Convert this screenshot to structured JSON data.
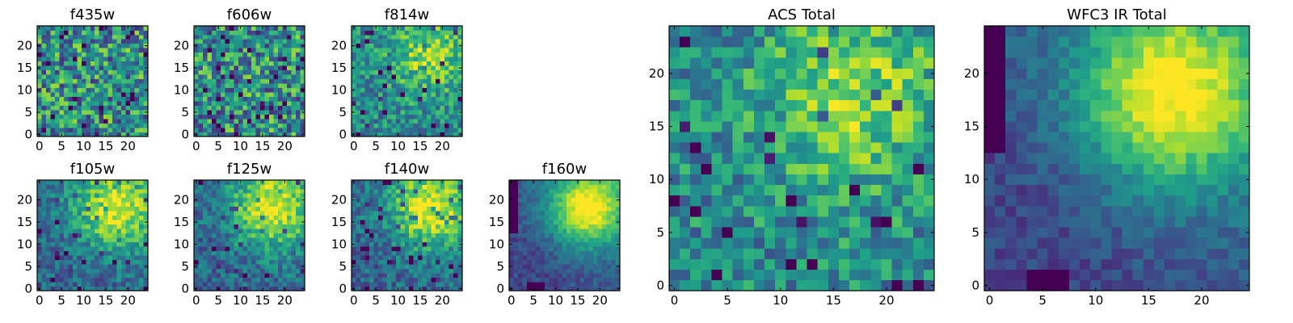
{
  "figure": {
    "background": "#ffffff"
  },
  "colormap": {
    "name": "viridis",
    "stops": [
      "#440154",
      "#482878",
      "#3e4a89",
      "#31688e",
      "#26828e",
      "#1f9e89",
      "#35b779",
      "#6ece58",
      "#b5de2b",
      "#fde725"
    ]
  },
  "chart_data": [
    {
      "type": "heatmap",
      "title": "f435w",
      "grid": [
        25,
        25
      ],
      "xlim": [
        0,
        24
      ],
      "ylim": [
        0,
        24
      ],
      "xticks": [
        0,
        5,
        10,
        15,
        20
      ],
      "yticks": [
        0,
        5,
        10,
        15,
        20
      ],
      "pattern": "noise",
      "seed": 11
    },
    {
      "type": "heatmap",
      "title": "f606w",
      "grid": [
        25,
        25
      ],
      "xlim": [
        0,
        24
      ],
      "ylim": [
        0,
        24
      ],
      "xticks": [
        0,
        5,
        10,
        15,
        20
      ],
      "yticks": [
        0,
        5,
        10,
        15,
        20
      ],
      "pattern": "noise",
      "seed": 23
    },
    {
      "type": "heatmap",
      "title": "f814w",
      "grid": [
        25,
        25
      ],
      "xlim": [
        0,
        24
      ],
      "ylim": [
        0,
        24
      ],
      "xticks": [
        0,
        5,
        10,
        15,
        20
      ],
      "yticks": [
        0,
        5,
        10,
        15,
        20
      ],
      "pattern": "noise-blob",
      "seed": 37
    },
    {
      "type": "heatmap",
      "title": "f105w",
      "grid": [
        25,
        25
      ],
      "xlim": [
        0,
        24
      ],
      "ylim": [
        0,
        24
      ],
      "xticks": [
        0,
        5,
        10,
        15,
        20
      ],
      "yticks": [
        0,
        5,
        10,
        15,
        20
      ],
      "pattern": "blob",
      "seed": 41
    },
    {
      "type": "heatmap",
      "title": "f125w",
      "grid": [
        25,
        25
      ],
      "xlim": [
        0,
        24
      ],
      "ylim": [
        0,
        24
      ],
      "xticks": [
        0,
        5,
        10,
        15,
        20
      ],
      "yticks": [
        0,
        5,
        10,
        15,
        20
      ],
      "pattern": "blob",
      "seed": 53
    },
    {
      "type": "heatmap",
      "title": "f140w",
      "grid": [
        25,
        25
      ],
      "xlim": [
        0,
        24
      ],
      "ylim": [
        0,
        24
      ],
      "xticks": [
        0,
        5,
        10,
        15,
        20
      ],
      "yticks": [
        0,
        5,
        10,
        15,
        20
      ],
      "pattern": "blob",
      "seed": 67
    },
    {
      "type": "heatmap",
      "title": "f160w",
      "grid": [
        25,
        25
      ],
      "xlim": [
        0,
        24
      ],
      "ylim": [
        0,
        24
      ],
      "xticks": [
        0,
        5,
        10,
        15,
        20
      ],
      "yticks": [
        0,
        5,
        10,
        15,
        20
      ],
      "pattern": "blob-smooth",
      "seed": 71
    },
    {
      "type": "heatmap",
      "title": "ACS Total",
      "grid": [
        25,
        25
      ],
      "xlim": [
        0,
        24
      ],
      "ylim": [
        0,
        24
      ],
      "xticks": [
        0,
        5,
        10,
        15,
        20
      ],
      "yticks": [
        0,
        5,
        10,
        15,
        20
      ],
      "pattern": "noise-blob",
      "seed": 83
    },
    {
      "type": "heatmap",
      "title": "WFC3 IR Total",
      "grid": [
        25,
        25
      ],
      "xlim": [
        0,
        24
      ],
      "ylim": [
        0,
        24
      ],
      "xticks": [
        0,
        5,
        10,
        15,
        20
      ],
      "yticks": [
        0,
        5,
        10,
        15,
        20
      ],
      "pattern": "blob-smooth",
      "seed": 97
    }
  ]
}
